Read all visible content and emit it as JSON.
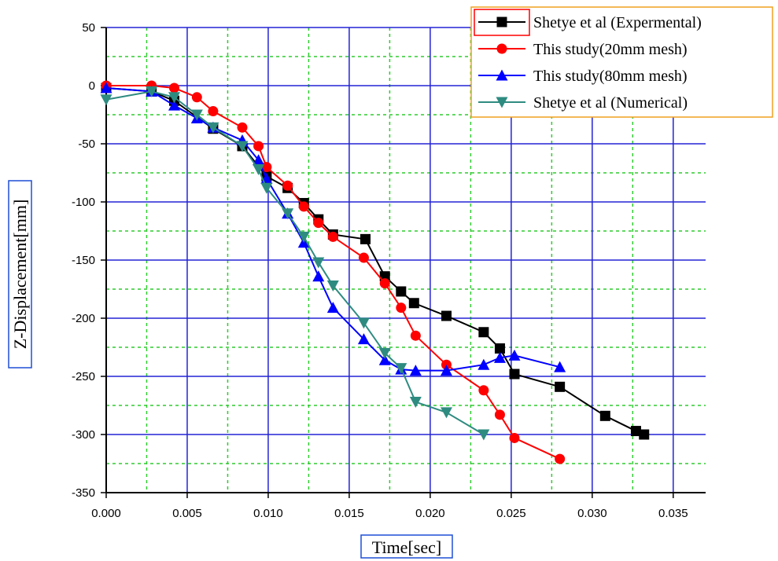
{
  "chart_data": {
    "type": "line",
    "xlabel": "Time[sec]",
    "ylabel": "Z-Displacement[mm]",
    "xlim": [
      0,
      0.037
    ],
    "ylim": [
      -350,
      50
    ],
    "xticks": [
      "0.000",
      "0.005",
      "0.010",
      "0.015",
      "0.020",
      "0.025",
      "0.030",
      "0.035"
    ],
    "xtick_values": [
      0,
      0.005,
      0.01,
      0.015,
      0.02,
      0.025,
      0.03,
      0.035
    ],
    "yticks": [
      "50",
      "0",
      "-50",
      "-100",
      "-150",
      "-200",
      "-250",
      "-300",
      "-350"
    ],
    "ytick_values": [
      50,
      0,
      -50,
      -100,
      -150,
      -200,
      -250,
      -300,
      -350
    ],
    "grid": true,
    "legend_position": "top-right",
    "series": [
      {
        "name": "Shetye et al (Expermental)",
        "color": "#000000",
        "marker": "square",
        "x": [
          0.0,
          0.0028,
          0.0042,
          0.0066,
          0.0084,
          0.0099,
          0.0112,
          0.0122,
          0.0131,
          0.014,
          0.016,
          0.0172,
          0.0182,
          0.019,
          0.021,
          0.0233,
          0.0243,
          0.0252,
          0.028,
          0.0308,
          0.0327,
          0.0332
        ],
        "y": [
          -2,
          -5,
          -13,
          -37,
          -52,
          -78,
          -88,
          -101,
          -115,
          -128,
          -132,
          -164,
          -177,
          -187,
          -198,
          -212,
          -226,
          -248,
          -259,
          -284,
          -297,
          -300
        ]
      },
      {
        "name": "This study(20mm mesh)",
        "color": "#ff0000",
        "marker": "circle",
        "x": [
          0.0,
          0.0028,
          0.0042,
          0.0056,
          0.0066,
          0.0084,
          0.0094,
          0.0099,
          0.0112,
          0.0122,
          0.0131,
          0.014,
          0.0159,
          0.0172,
          0.0182,
          0.0191,
          0.021,
          0.0233,
          0.0243,
          0.0252,
          0.028
        ],
        "y": [
          0,
          0,
          -2,
          -10,
          -22,
          -36,
          -52,
          -70,
          -86,
          -104,
          -118,
          -130,
          -148,
          -170,
          -191,
          -215,
          -240,
          -262,
          -283,
          -303,
          -321
        ]
      },
      {
        "name": "This study(80mm mesh)",
        "color": "#0000ff",
        "marker": "triangle-up",
        "x": [
          0.0,
          0.0028,
          0.0042,
          0.0056,
          0.0066,
          0.0084,
          0.0094,
          0.0099,
          0.0112,
          0.0122,
          0.0131,
          0.014,
          0.0159,
          0.0172,
          0.0182,
          0.0191,
          0.021,
          0.0233,
          0.0243,
          0.0252,
          0.028
        ],
        "y": [
          -2,
          -5,
          -17,
          -28,
          -36,
          -47,
          -64,
          -80,
          -110,
          -135,
          -164,
          -191,
          -218,
          -236,
          -244,
          -245,
          -245,
          -240,
          -234,
          -232,
          -242
        ]
      },
      {
        "name": "Shetye et al (Numerical)",
        "color": "#2e8b80",
        "marker": "triangle-down",
        "x": [
          0.0,
          0.0028,
          0.0042,
          0.0056,
          0.0066,
          0.0084,
          0.0094,
          0.0099,
          0.0112,
          0.0122,
          0.0131,
          0.014,
          0.0159,
          0.0172,
          0.0182,
          0.0191,
          0.021,
          0.0233
        ],
        "y": [
          -12,
          -5,
          -10,
          -25,
          -36,
          -52,
          -72,
          -88,
          -110,
          -130,
          -152,
          -172,
          -204,
          -230,
          -243,
          -272,
          -281,
          -300
        ]
      }
    ]
  }
}
